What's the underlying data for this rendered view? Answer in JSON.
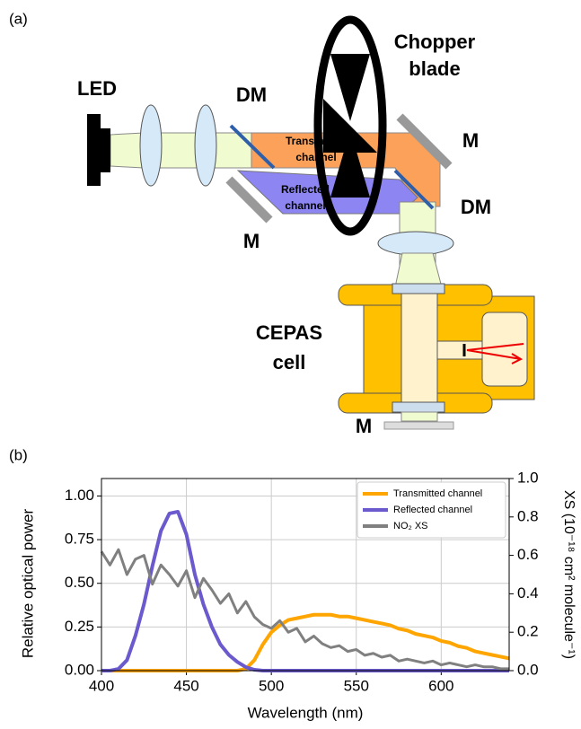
{
  "panel_a": {
    "panel_label": "(a)",
    "led": "LED",
    "dm_left": "DM",
    "dm_right": "DM",
    "chopper": [
      "Chopper",
      "blade"
    ],
    "mirror_right": "M",
    "mirror_left": "M",
    "mirror_bottom": "M",
    "transmitted": [
      "Transmitted",
      "channel"
    ],
    "reflected": [
      "Reflected",
      "channel"
    ],
    "cell": [
      "CEPAS",
      "cell"
    ]
  },
  "panel_b": {
    "panel_label": "(b)"
  },
  "chart_data": {
    "type": "line",
    "xlabel": "Wavelength (nm)",
    "ylabel": "Relative optical power",
    "y2label": "XS (10⁻¹⁸ cm² molecule⁻¹)",
    "x": [
      400,
      405,
      410,
      415,
      420,
      425,
      430,
      435,
      440,
      445,
      450,
      455,
      460,
      465,
      470,
      475,
      480,
      485,
      490,
      495,
      500,
      505,
      510,
      515,
      520,
      525,
      530,
      535,
      540,
      545,
      550,
      555,
      560,
      565,
      570,
      575,
      580,
      585,
      590,
      595,
      600,
      605,
      610,
      615,
      620,
      625,
      630,
      635,
      640
    ],
    "series": [
      {
        "name": "Transmitted channel",
        "color": "#ffa500",
        "values": [
          0,
          0,
          0,
          0,
          0,
          0,
          0,
          0,
          0,
          0,
          0,
          0,
          0,
          0,
          0,
          0,
          0,
          0.01,
          0.06,
          0.15,
          0.22,
          0.26,
          0.29,
          0.3,
          0.31,
          0.32,
          0.32,
          0.32,
          0.31,
          0.31,
          0.3,
          0.29,
          0.28,
          0.27,
          0.26,
          0.24,
          0.23,
          0.21,
          0.2,
          0.19,
          0.17,
          0.16,
          0.14,
          0.13,
          0.11,
          0.1,
          0.09,
          0.08,
          0.07
        ]
      },
      {
        "name": "Reflected channel",
        "color": "#6a5acd",
        "values": [
          0,
          0,
          0.01,
          0.06,
          0.2,
          0.38,
          0.6,
          0.8,
          0.9,
          0.91,
          0.78,
          0.55,
          0.38,
          0.25,
          0.15,
          0.09,
          0.05,
          0.02,
          0.005,
          0,
          0,
          0,
          0,
          0,
          0,
          0,
          0,
          0,
          0,
          0,
          0,
          0,
          0,
          0,
          0,
          0,
          0,
          0,
          0,
          0,
          0,
          0,
          0,
          0,
          0,
          0,
          0,
          0,
          0
        ]
      },
      {
        "name": "NO₂ XS",
        "color": "#808080",
        "axis": "y2",
        "values": [
          0.62,
          0.55,
          0.63,
          0.5,
          0.58,
          0.6,
          0.45,
          0.55,
          0.5,
          0.44,
          0.52,
          0.38,
          0.48,
          0.42,
          0.35,
          0.4,
          0.3,
          0.36,
          0.28,
          0.24,
          0.22,
          0.26,
          0.2,
          0.22,
          0.15,
          0.18,
          0.14,
          0.12,
          0.13,
          0.1,
          0.11,
          0.08,
          0.09,
          0.07,
          0.08,
          0.05,
          0.06,
          0.05,
          0.04,
          0.05,
          0.03,
          0.04,
          0.03,
          0.02,
          0.03,
          0.02,
          0.02,
          0.01,
          0.01
        ]
      }
    ],
    "xlim": [
      400,
      640
    ],
    "xticks": [
      400,
      450,
      500,
      550,
      600
    ],
    "ylim": [
      0,
      1.1
    ],
    "yticks": [
      {
        "value": 0,
        "label": "0.00"
      },
      {
        "value": 0.25,
        "label": "0.25"
      },
      {
        "value": 0.5,
        "label": "0.50"
      },
      {
        "value": 0.75,
        "label": "0.75"
      },
      {
        "value": 1,
        "label": "1.00"
      }
    ],
    "y2lim": [
      0,
      1
    ],
    "y2ticks": [
      {
        "value": 0,
        "label": "0.0"
      },
      0.2,
      0.4,
      0.6,
      0.8,
      {
        "value": 1,
        "label": "1.0"
      }
    ],
    "grid": true,
    "legend": "upper right"
  }
}
